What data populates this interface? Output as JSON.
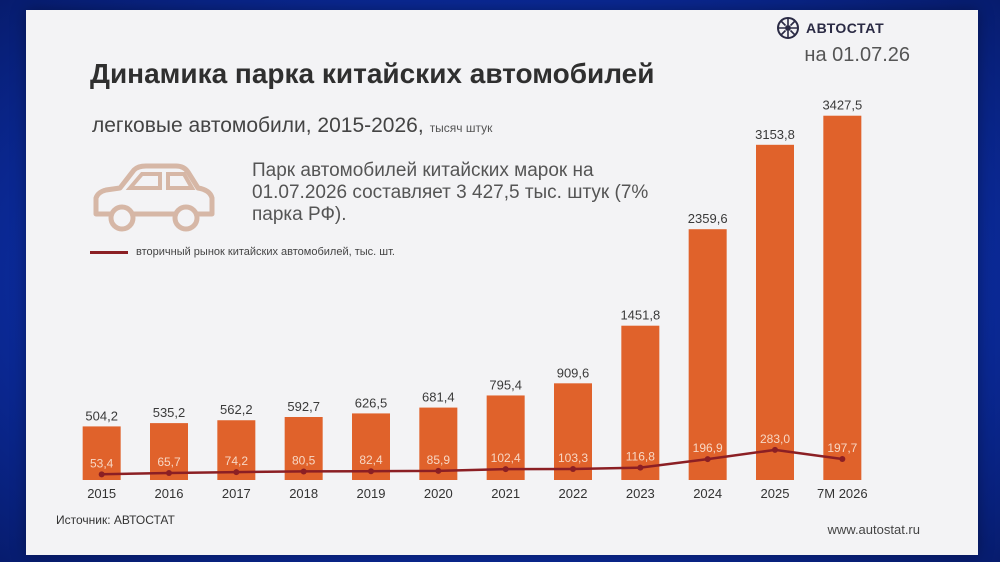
{
  "slide": {
    "logo_text": "АВТОСТАТ",
    "date": "на 01.07.26",
    "title": "Динамика парка китайских автомобилей",
    "subtitle": "легковые автомобили, 2015-2026,",
    "subtitle_unit": "тысяч штук",
    "callout": "Парк автомобилей китайских марок на 01.07.2026 составляет 3 427,5 тыс. штук (7% парка РФ).",
    "legend_label": "вторичный рынок китайских автомобилей, тыс. шт.",
    "source": "Источник: АВТОСТАТ",
    "website": "www.autostat.ru"
  },
  "colors": {
    "bar": "#e0622b",
    "line": "#8b1f24",
    "bar_label": "#3a3a3a",
    "line_label": "#f7d7c4"
  },
  "icons": {
    "car": "car-icon",
    "logo": "autostat-logo-icon"
  },
  "chart_data": {
    "type": "bar",
    "categories": [
      "2015",
      "2016",
      "2017",
      "2018",
      "2019",
      "2020",
      "2021",
      "2022",
      "2023",
      "2024",
      "2025",
      "7M 2026"
    ],
    "series": [
      {
        "values": [
          504.2,
          535.2,
          562.2,
          592.7,
          626.5,
          681.4,
          795.4,
          909.6,
          1451.8,
          2359.6,
          3153.8,
          3427.5
        ],
        "labels": [
          "504,2",
          "535,2",
          "562,2",
          "592,7",
          "626,5",
          "681,4",
          "795,4",
          "909,6",
          "1451,8",
          "2359,6",
          "3153,8",
          "3427,5"
        ]
      },
      {
        "name": "вторичный рынок китайских автомобилей, тыс. шт.",
        "type": "line",
        "values": [
          53.4,
          65.7,
          74.2,
          80.5,
          82.4,
          85.9,
          102.4,
          103.3,
          116.8,
          196.9,
          283.0,
          197.7
        ],
        "labels": [
          "53,4",
          "65,7",
          "74,2",
          "80,5",
          "82,4",
          "85,9",
          "102,4",
          "103,3",
          "116,8",
          "196,9",
          "283,0",
          "197,7"
        ]
      }
    ],
    "ylim": [
      0,
      3500
    ]
  }
}
